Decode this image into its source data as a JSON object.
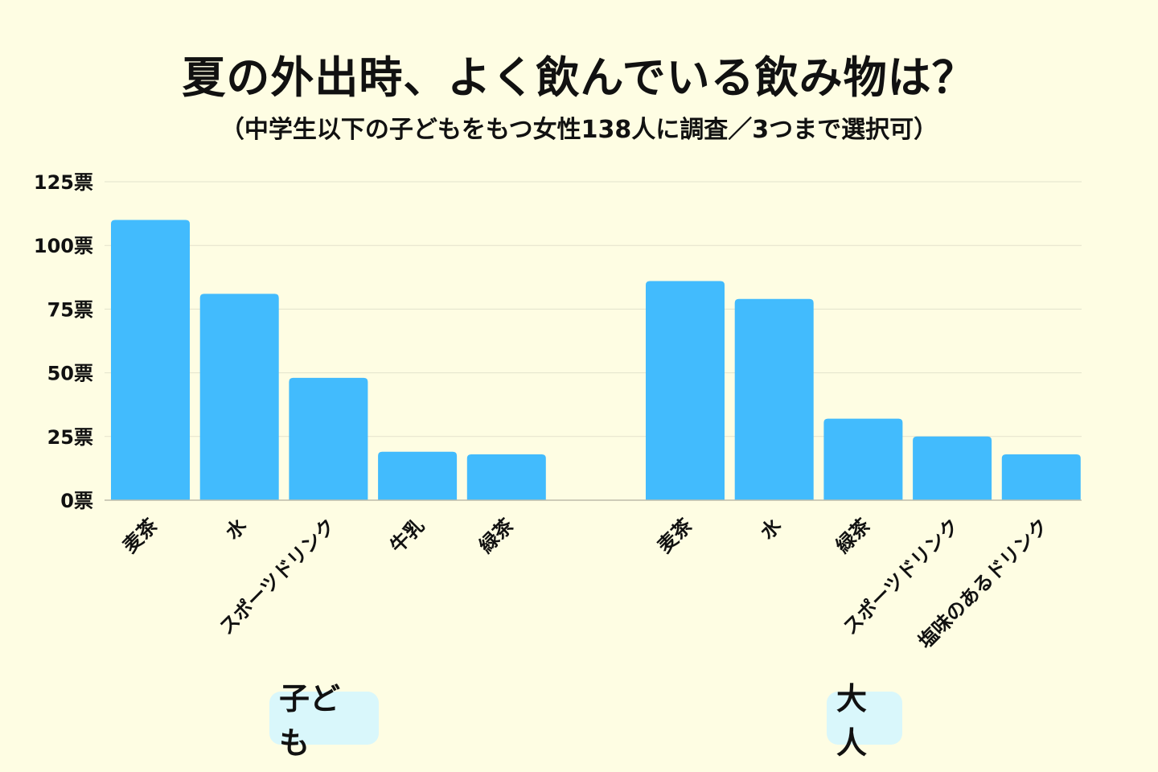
{
  "chart_data": {
    "type": "bar",
    "title": "夏の外出時、よく飲んでいる飲み物は？",
    "subtitle": "（中学生以下の子どもをもつ女性138人に調査／3つまで選択可）",
    "y_tick_labels": [
      "0票",
      "25票",
      "50票",
      "75票",
      "100票",
      "125票"
    ],
    "y_ticks": [
      0,
      25,
      50,
      75,
      100,
      125
    ],
    "ylim": [
      0,
      125
    ],
    "grid": true,
    "groups": [
      {
        "name": "子ども",
        "categories": [
          "麦茶",
          "水",
          "スポーツドリンク",
          "牛乳",
          "緑茶"
        ],
        "values": [
          110,
          81,
          48,
          19,
          18
        ]
      },
      {
        "name": "大人",
        "categories": [
          "麦茶",
          "水",
          "緑茶",
          "スポーツドリンク",
          "塩味のあるドリンク"
        ],
        "values": [
          86,
          79,
          32,
          25,
          18
        ]
      }
    ],
    "bar_color": "#42bbfd",
    "grid_color": "#e3e2cc",
    "axis_color": "#bdbcaa"
  }
}
